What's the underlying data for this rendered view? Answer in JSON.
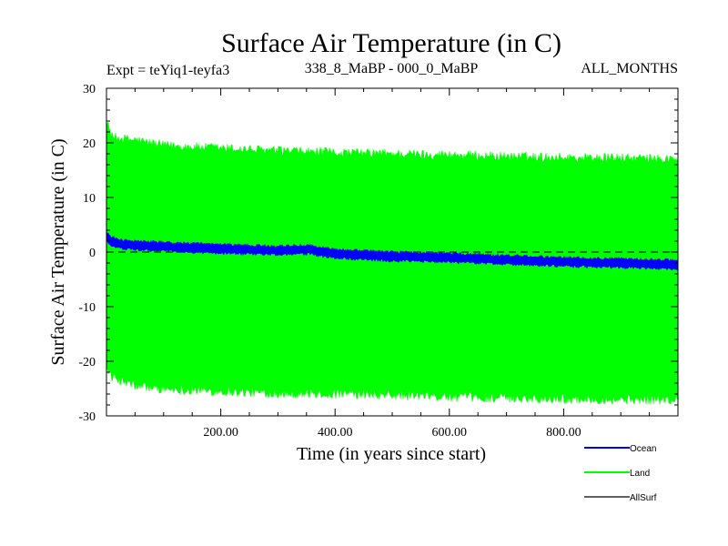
{
  "chart_data": {
    "type": "area",
    "title": "Surface Air Temperature (in C)",
    "subtitle_left": "Expt = teYiq1-teyfa3",
    "subtitle_center": "338_8_MaBP - 000_0_MaBP",
    "subtitle_right": "ALL_MONTHS",
    "xlabel": "Time (in years since start)",
    "ylabel": "Surface Air Temperature (in C)",
    "xlim": [
      0,
      1000
    ],
    "ylim": [
      -30,
      30
    ],
    "xticks": [
      200,
      400,
      600,
      800
    ],
    "xtick_labels": [
      "200.00",
      "400.00",
      "600.00",
      "800.00"
    ],
    "yticks": [
      -30,
      -20,
      -10,
      0,
      10,
      20,
      30
    ],
    "ytick_labels": [
      "-30",
      "-20",
      "-10",
      "0",
      "10",
      "20",
      "30"
    ],
    "zero_line": {
      "value": 0,
      "style": "dashed"
    },
    "series": [
      {
        "name": "Land",
        "color": "#00ff00",
        "kind": "envelope",
        "x": [
          0,
          10,
          50,
          100,
          200,
          300,
          400,
          500,
          600,
          700,
          800,
          900,
          1000
        ],
        "upper": [
          24,
          21,
          20.5,
          19.5,
          19,
          18.5,
          18.2,
          18,
          17.8,
          17.5,
          17.3,
          17.2,
          17
        ],
        "lower": [
          -21,
          -23,
          -24.5,
          -25,
          -25.5,
          -25.8,
          -26,
          -26.2,
          -26.5,
          -26.7,
          -26.8,
          -27,
          -27
        ]
      },
      {
        "name": "Ocean",
        "color": "#0000ff",
        "kind": "band",
        "x": [
          0,
          5,
          20,
          50,
          100,
          200,
          300,
          350,
          400,
          500,
          600,
          700,
          800,
          900,
          1000
        ],
        "center": [
          3,
          2.2,
          1.5,
          1.2,
          1,
          0.6,
          0.3,
          0.5,
          -0.3,
          -0.8,
          -1,
          -1.4,
          -1.8,
          -2,
          -2.3
        ],
        "halfwidth": 0.8
      },
      {
        "name": "AllSurf",
        "color": "#000000",
        "kind": "hidden"
      }
    ],
    "legend": {
      "placement": "bottom-right",
      "entries": [
        "Ocean",
        "Land",
        "AllSurf"
      ]
    }
  }
}
